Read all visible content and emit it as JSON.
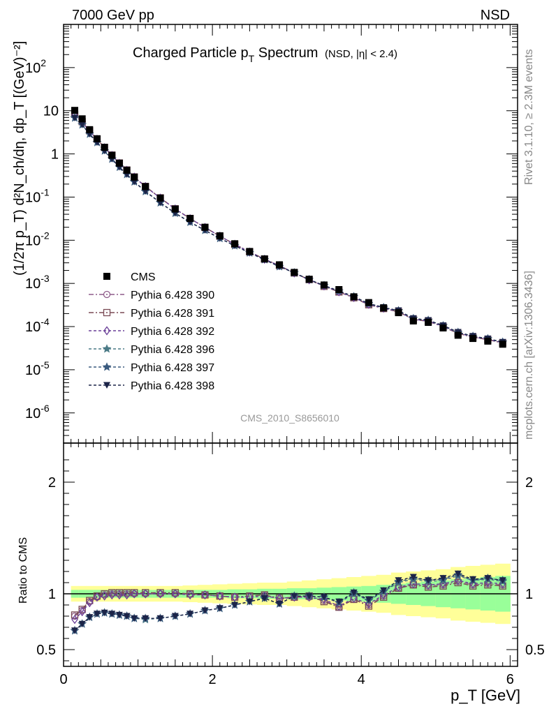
{
  "header": {
    "left": "7000 GeV pp",
    "right": "NSD"
  },
  "title": {
    "main": "Charged Particle p",
    "sub": "T",
    "after": " Spectrum",
    "small": "(NSD, |η| < 2.4)"
  },
  "ylabel_top": "(1/2π p_T) d²N_ch/dη, dp_T [(GeV)⁻²]",
  "ylabel_bottom": "Ratio to CMS",
  "xlabel": "p_T [GeV]",
  "side_text_top": "Rivet 3.1.10, ≥ 2.3M events",
  "side_text_bottom": "mcplots.cern.ch [arXiv:1306.3436]",
  "analysis_label": "CMS_2010_S8656010",
  "colors": {
    "cms": "#000000",
    "s390": "#8e5b8a",
    "s391": "#7a4a55",
    "s392": "#6a3f98",
    "s396": "#4a7a86",
    "s397": "#3a5a7e",
    "s398": "#1c2448",
    "band_inner": "#99ff99",
    "band_outer": "#ffff99"
  },
  "chart_data": {
    "type": "line",
    "x": [
      0.15,
      0.25,
      0.35,
      0.45,
      0.55,
      0.65,
      0.75,
      0.85,
      0.95,
      1.1,
      1.3,
      1.5,
      1.7,
      1.9,
      2.1,
      2.3,
      2.5,
      2.7,
      2.9,
      3.1,
      3.3,
      3.5,
      3.7,
      3.9,
      4.1,
      4.3,
      4.5,
      4.7,
      4.9,
      5.1,
      5.3,
      5.5,
      5.7,
      5.9
    ],
    "xlim": [
      0,
      6.1
    ],
    "ylim_top": [
      2e-07,
      1000
    ],
    "ylim_bottom": [
      0.35,
      2.35
    ],
    "x_ticks": [
      0,
      2,
      4,
      6
    ],
    "top_ticks": [
      {
        "v": 1e-06,
        "l": "10",
        "e": "-6"
      },
      {
        "v": 1e-05,
        "l": "10",
        "e": "-5"
      },
      {
        "v": 0.0001,
        "l": "10",
        "e": "-4"
      },
      {
        "v": 0.001,
        "l": "10",
        "e": "-3"
      },
      {
        "v": 0.01,
        "l": "10",
        "e": "-2"
      },
      {
        "v": 0.1,
        "l": "10",
        "e": "-1"
      },
      {
        "v": 1,
        "l": "1",
        "e": ""
      },
      {
        "v": 10,
        "l": "10",
        "e": ""
      },
      {
        "v": 100,
        "l": "10",
        "e": "2"
      }
    ],
    "bottom_ticks": [
      {
        "v": 0.5,
        "l": "0.5"
      },
      {
        "v": 1,
        "l": "1"
      },
      {
        "v": 2,
        "l": "2"
      }
    ],
    "cms": [
      10.2,
      6.5,
      3.65,
      2.25,
      1.42,
      0.93,
      0.61,
      0.42,
      0.29,
      0.175,
      0.095,
      0.053,
      0.032,
      0.02,
      0.0127,
      0.0083,
      0.0055,
      0.0037,
      0.0027,
      0.0018,
      0.00125,
      0.00092,
      0.00072,
      0.00049,
      0.00036,
      0.00027,
      0.00021,
      0.000135,
      0.000125,
      9.3e-05,
      6.3e-05,
      5.3e-05,
      4.6e-05,
      3.9e-05
    ],
    "band_inner": [
      0.035,
      0.035,
      0.035,
      0.035,
      0.035,
      0.035,
      0.035,
      0.035,
      0.035,
      0.035,
      0.035,
      0.035,
      0.035,
      0.035,
      0.035,
      0.04,
      0.04,
      0.045,
      0.045,
      0.05,
      0.05,
      0.055,
      0.06,
      0.065,
      0.07,
      0.08,
      0.09,
      0.1,
      0.11,
      0.12,
      0.13,
      0.14,
      0.15,
      0.16
    ],
    "band_outer": [
      0.07,
      0.07,
      0.07,
      0.07,
      0.07,
      0.07,
      0.07,
      0.07,
      0.07,
      0.07,
      0.07,
      0.07,
      0.075,
      0.08,
      0.085,
      0.09,
      0.095,
      0.1,
      0.1,
      0.11,
      0.12,
      0.13,
      0.14,
      0.15,
      0.16,
      0.17,
      0.19,
      0.2,
      0.21,
      0.22,
      0.24,
      0.25,
      0.26,
      0.27
    ],
    "series": [
      {
        "name": "Pythia 6.428 390",
        "key": "s390",
        "marker": "circle",
        "dash": "7,3,2,3",
        "ratio": [
          0.8,
          0.85,
          0.93,
          0.97,
          0.99,
          1.0,
          1.0,
          1.0,
          1.0,
          1.0,
          1.0,
          1.0,
          1.0,
          0.99,
          0.98,
          0.97,
          0.98,
          0.99,
          0.95,
          0.97,
          0.97,
          0.94,
          0.88,
          0.95,
          0.9,
          0.98,
          1.05,
          1.08,
          1.07,
          1.08,
          1.11,
          1.08,
          1.09,
          1.08
        ]
      },
      {
        "name": "Pythia 6.428 391",
        "key": "s391",
        "marker": "square",
        "dash": "7,3,2,3",
        "ratio": [
          0.81,
          0.86,
          0.94,
          0.98,
          1.0,
          1.01,
          1.01,
          1.01,
          1.01,
          1.01,
          1.01,
          1.01,
          1.0,
          0.99,
          0.98,
          0.97,
          0.98,
          0.99,
          0.96,
          0.97,
          0.98,
          0.93,
          0.88,
          0.95,
          0.89,
          0.97,
          1.05,
          1.08,
          1.06,
          1.07,
          1.1,
          1.07,
          1.08,
          1.07
        ]
      },
      {
        "name": "Pythia 6.428 392",
        "key": "s392",
        "marker": "diamond",
        "dash": "4,3",
        "ratio": [
          0.77,
          0.84,
          0.92,
          0.97,
          0.98,
          0.99,
          0.99,
          0.99,
          1.0,
          1.0,
          1.0,
          1.0,
          0.99,
          0.99,
          0.98,
          0.97,
          0.97,
          0.98,
          0.96,
          0.97,
          0.97,
          0.95,
          0.89,
          0.96,
          0.91,
          0.99,
          1.06,
          1.09,
          1.08,
          1.09,
          1.12,
          1.09,
          1.1,
          1.09
        ]
      },
      {
        "name": "Pythia 6.428 396",
        "key": "s396",
        "marker": "star",
        "dash": "4,3",
        "ratio": [
          0.67,
          0.73,
          0.79,
          0.82,
          0.83,
          0.82,
          0.81,
          0.8,
          0.78,
          0.77,
          0.78,
          0.8,
          0.82,
          0.85,
          0.87,
          0.9,
          0.93,
          0.96,
          0.91,
          0.98,
          0.98,
          0.97,
          0.92,
          1.0,
          0.94,
          1.02,
          1.1,
          1.13,
          1.11,
          1.12,
          1.16,
          1.12,
          1.13,
          1.11
        ]
      },
      {
        "name": "Pythia 6.428 397",
        "key": "s397",
        "marker": "star",
        "dash": "4,3",
        "ratio": [
          0.67,
          0.73,
          0.79,
          0.82,
          0.83,
          0.82,
          0.81,
          0.8,
          0.78,
          0.78,
          0.78,
          0.8,
          0.82,
          0.85,
          0.87,
          0.9,
          0.93,
          0.96,
          0.91,
          0.98,
          0.98,
          0.97,
          0.92,
          1.01,
          0.94,
          1.02,
          1.11,
          1.14,
          1.12,
          1.13,
          1.17,
          1.12,
          1.14,
          1.12
        ]
      },
      {
        "name": "Pythia 6.428 398",
        "key": "s398",
        "marker": "tri-down",
        "dash": "4,3",
        "ratio": [
          0.67,
          0.73,
          0.79,
          0.82,
          0.83,
          0.82,
          0.81,
          0.8,
          0.78,
          0.78,
          0.78,
          0.8,
          0.82,
          0.85,
          0.87,
          0.9,
          0.93,
          0.96,
          0.91,
          0.98,
          0.98,
          0.97,
          0.93,
          1.01,
          0.95,
          1.03,
          1.12,
          1.15,
          1.12,
          1.14,
          1.18,
          1.13,
          1.14,
          1.12
        ]
      }
    ],
    "legend_cms": "CMS",
    "legend_position": "left-middle"
  }
}
